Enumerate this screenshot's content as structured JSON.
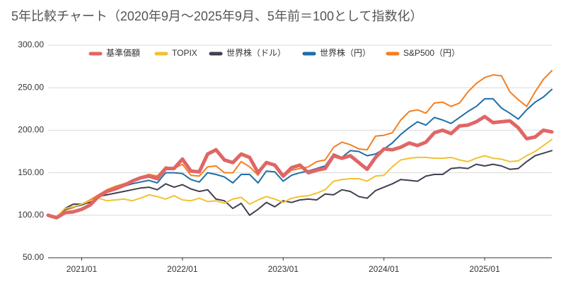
{
  "chart_data": {
    "type": "line",
    "title": "5年比較チャート（2020年9月〜2025年9月、5年前＝100として指数化）",
    "categories": [
      null,
      null,
      null,
      null,
      "2021/01",
      null,
      null,
      null,
      null,
      null,
      null,
      null,
      null,
      null,
      null,
      null,
      "2022/01",
      null,
      null,
      null,
      null,
      null,
      null,
      null,
      null,
      null,
      null,
      null,
      "2023/01",
      null,
      null,
      null,
      null,
      null,
      null,
      null,
      null,
      null,
      null,
      null,
      "2024/01",
      null,
      null,
      null,
      null,
      null,
      null,
      null,
      null,
      null,
      null,
      null,
      "2025/01",
      null,
      null,
      null,
      null,
      null,
      null,
      null,
      null
    ],
    "series": [
      {
        "name": "基準価額",
        "color": "#e06666",
        "width": 5,
        "values": [
          100,
          97,
          103,
          104,
          107,
          112,
          122,
          128,
          131,
          135,
          140,
          144,
          146,
          143,
          155,
          155,
          166,
          152,
          151,
          172,
          177,
          165,
          162,
          172,
          168,
          150,
          162,
          159,
          146,
          156,
          159,
          150,
          153,
          155,
          170,
          167,
          170,
          162,
          154,
          168,
          178,
          177,
          180,
          185,
          182,
          186,
          197,
          200,
          196,
          205,
          206,
          210,
          216,
          209,
          210,
          211,
          203,
          190,
          192,
          200,
          198
        ]
      },
      {
        "name": "TOPIX",
        "color": "#f1c232",
        "width": 2,
        "values": [
          100,
          98,
          108,
          110,
          113,
          117,
          120,
          117,
          118,
          119,
          117,
          120,
          124,
          122,
          119,
          123,
          118,
          117,
          120,
          116,
          117,
          114,
          119,
          121,
          113,
          118,
          122,
          119,
          115,
          120,
          122,
          123,
          126,
          130,
          140,
          142,
          143,
          143,
          140,
          146,
          147,
          157,
          165,
          167,
          168,
          168,
          167,
          167,
          168,
          165,
          163,
          167,
          170,
          167,
          166,
          163,
          164,
          170,
          175,
          182,
          189
        ]
      },
      {
        "name": "世界株（ドル）",
        "color": "#433f53",
        "width": 2,
        "values": [
          100,
          96,
          108,
          113,
          113,
          115,
          122,
          124,
          126,
          128,
          130,
          132,
          133,
          130,
          137,
          133,
          136,
          131,
          128,
          130,
          119,
          117,
          108,
          114,
          100,
          107,
          115,
          110,
          117,
          115,
          118,
          119,
          118,
          125,
          124,
          130,
          128,
          122,
          120,
          129,
          133,
          137,
          142,
          141,
          140,
          146,
          148,
          148,
          155,
          156,
          155,
          160,
          158,
          160,
          158,
          154,
          155,
          163,
          170,
          173,
          176
        ]
      },
      {
        "name": "世界株（円）",
        "color": "#1f6fa8",
        "width": 2,
        "values": [
          100,
          97,
          107,
          110,
          112,
          116,
          122,
          127,
          131,
          134,
          137,
          139,
          141,
          138,
          150,
          150,
          149,
          142,
          139,
          150,
          148,
          145,
          138,
          148,
          148,
          138,
          152,
          151,
          140,
          147,
          150,
          152,
          155,
          158,
          172,
          168,
          176,
          175,
          170,
          172,
          178,
          185,
          195,
          203,
          210,
          206,
          215,
          212,
          208,
          215,
          222,
          228,
          237,
          237,
          226,
          220,
          213,
          224,
          233,
          239,
          248
        ]
      },
      {
        "name": "S&P500（円）",
        "color": "#f57e20",
        "width": 2,
        "values": [
          100,
          97,
          106,
          109,
          113,
          118,
          124,
          130,
          134,
          137,
          140,
          145,
          148,
          146,
          157,
          155,
          160,
          147,
          146,
          157,
          158,
          150,
          150,
          163,
          157,
          147,
          163,
          160,
          145,
          153,
          155,
          157,
          163,
          165,
          180,
          186,
          183,
          178,
          177,
          193,
          194,
          197,
          212,
          222,
          224,
          220,
          232,
          233,
          228,
          232,
          245,
          255,
          262,
          265,
          264,
          245,
          236,
          228,
          245,
          260,
          270
        ]
      }
    ],
    "ylim": [
      50,
      300
    ],
    "yticks": [
      {
        "value": 50,
        "label": "50.00"
      },
      {
        "value": 100,
        "label": "100.00"
      },
      {
        "value": 150,
        "label": "150.00"
      },
      {
        "value": 200,
        "label": "200.00"
      },
      {
        "value": 250,
        "label": "250.00"
      },
      {
        "value": 300,
        "label": "300.00"
      }
    ],
    "grid": true,
    "legend": "top"
  }
}
